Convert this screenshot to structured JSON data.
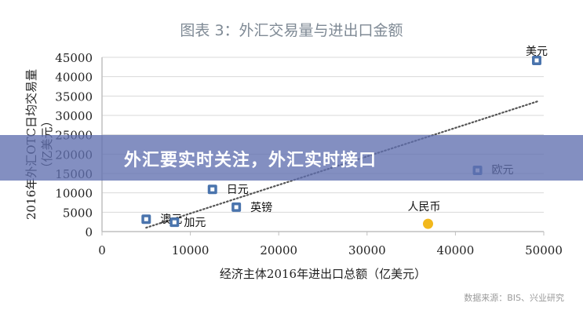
{
  "chart_data": {
    "type": "scatter",
    "title": "图表 3：外汇交易量与进出口金额",
    "xlabel": "经济主体2016年进出口总额（亿美元）",
    "ylabel": [
      "2016年外汇OTC日均交易量",
      "（亿美元）"
    ],
    "xlim": [
      0,
      50000
    ],
    "ylim": [
      0,
      45000
    ],
    "xticks": [
      "0",
      "10000",
      "20000",
      "30000",
      "40000",
      "50000"
    ],
    "yticks": [
      "0",
      "5000",
      "10000",
      "15000",
      "20000",
      "25000",
      "30000",
      "35000",
      "40000",
      "45000"
    ],
    "grid": "horizontal",
    "points": [
      {
        "label": "美元",
        "x": 49200,
        "y": 44200,
        "marker": "square",
        "color": "#4a74ad"
      },
      {
        "label": "欧元",
        "x": 42500,
        "y": 15800,
        "marker": "square",
        "color": "#4a74ad"
      },
      {
        "label": "日元",
        "x": 12500,
        "y": 10900,
        "marker": "square",
        "color": "#4a74ad"
      },
      {
        "label": "英镑",
        "x": 15200,
        "y": 6300,
        "marker": "square",
        "color": "#4a74ad"
      },
      {
        "label": "澳元",
        "x": 5000,
        "y": 3200,
        "marker": "square",
        "color": "#4a74ad"
      },
      {
        "label": "加元",
        "x": 8200,
        "y": 2400,
        "marker": "square",
        "color": "#4a74ad"
      },
      {
        "label": "人民币",
        "x": 36900,
        "y": 2000,
        "marker": "circle",
        "color": "#f2b81c"
      }
    ],
    "trendline": {
      "style": "dotted",
      "color": "#555555",
      "x": [
        5000,
        49400
      ],
      "y": [
        1000,
        33700
      ]
    },
    "source": "数据来源：BIS、兴业研究"
  },
  "banner": {
    "text": "外汇要实时关注，外汇实时接口"
  }
}
